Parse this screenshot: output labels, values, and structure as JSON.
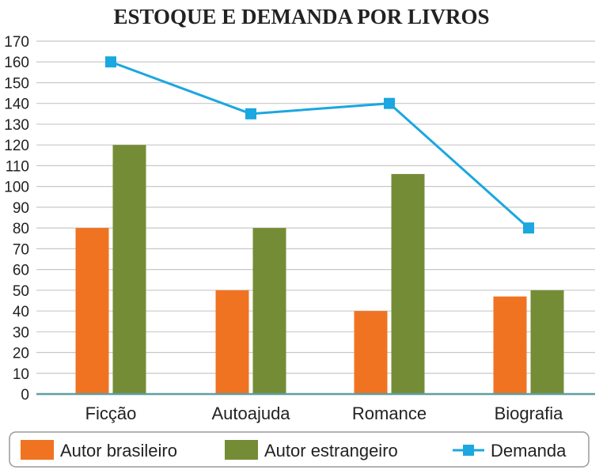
{
  "chart_data": {
    "type": "bar",
    "title": "ESTOQUE E DEMANDA POR LIVROS",
    "categories": [
      "Ficção",
      "Autoajuda",
      "Romance",
      "Biografia"
    ],
    "series": [
      {
        "name": "Autor brasileiro",
        "type": "bar",
        "color": "#f07322",
        "values": [
          80,
          50,
          40,
          47
        ]
      },
      {
        "name": "Autor estrangeiro",
        "type": "bar",
        "color": "#758c36",
        "values": [
          120,
          80,
          106,
          50
        ]
      },
      {
        "name": "Demanda",
        "type": "line",
        "color": "#1ba7e0",
        "values": [
          160,
          135,
          140,
          80
        ]
      }
    ],
    "ylim": [
      0,
      170
    ],
    "yticks": [
      0,
      10,
      20,
      30,
      40,
      50,
      60,
      70,
      80,
      90,
      100,
      110,
      120,
      130,
      140,
      150,
      160,
      170
    ],
    "grid": true,
    "legend_position": "bottom"
  }
}
